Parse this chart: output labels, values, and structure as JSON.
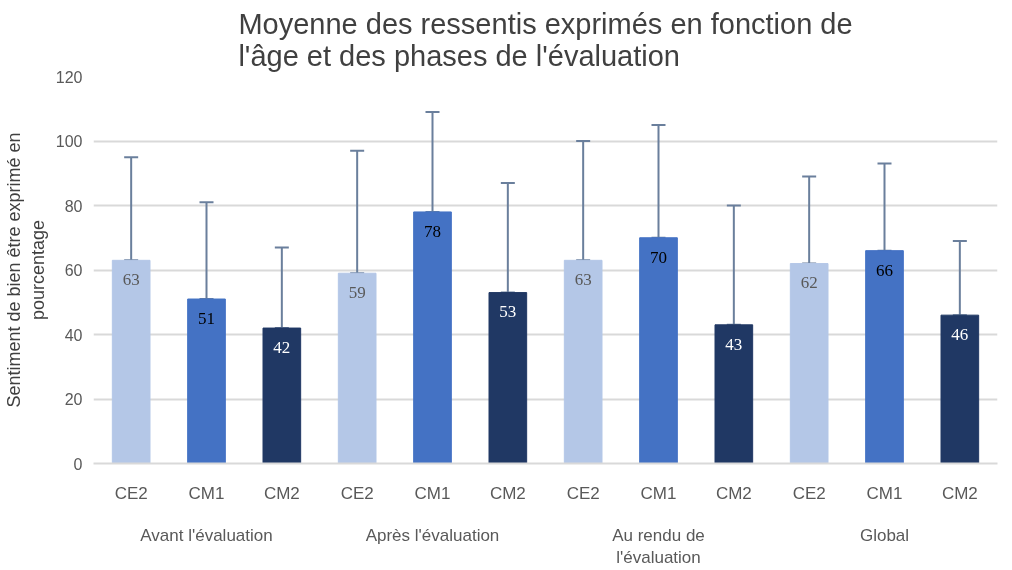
{
  "chart_data": {
    "type": "bar",
    "title": "Moyenne des ressentis exprimés en fonction de l'âge et des phases de l'évaluation",
    "ylabel": "Sentiment de bien être exprimé en pourcentage",
    "categories": [
      "CE2",
      "CM1",
      "CM2",
      "CE2",
      "CM1",
      "CM2",
      "CE2",
      "CM1",
      "CM2",
      "CE2",
      "CM1",
      "CM2"
    ],
    "values": [
      63,
      51,
      42,
      59,
      78,
      53,
      63,
      70,
      43,
      62,
      66,
      46
    ],
    "colors": [
      "#b4c7e7",
      "#4472c4",
      "#203864",
      "#b4c7e7",
      "#4472c4",
      "#203864",
      "#b4c7e7",
      "#4472c4",
      "#203864",
      "#b4c7e7",
      "#4472c4",
      "#203864"
    ],
    "errors": [
      [
        63,
        95
      ],
      [
        51,
        81
      ],
      [
        42,
        67
      ],
      [
        59,
        97
      ],
      [
        78,
        109
      ],
      [
        53,
        87
      ],
      [
        63,
        100
      ],
      [
        70,
        105
      ],
      [
        43,
        80
      ],
      [
        62,
        89
      ],
      [
        66,
        93
      ],
      [
        46,
        69
      ]
    ],
    "annotations": [
      "Avant l'évaluation",
      "Après l'évaluation",
      "Au rendu de l'évaluation",
      "Global"
    ],
    "ylim": [
      0,
      120
    ],
    "yticks": [
      0,
      20,
      40,
      60,
      80,
      100,
      120
    ],
    "grid": "y",
    "data_labels": true
  }
}
